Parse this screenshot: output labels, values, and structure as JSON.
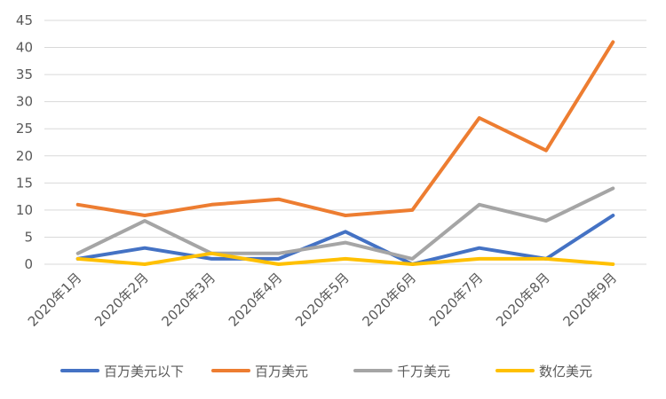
{
  "chart_data": {
    "type": "line",
    "title": "",
    "xlabel": "",
    "ylabel": "",
    "categories": [
      "2020年1月",
      "2020年2月",
      "2020年3月",
      "2020年4月",
      "2020年5月",
      "2020年6月",
      "2020年7月",
      "2020年8月",
      "2020年9月"
    ],
    "ylim": [
      0,
      45
    ],
    "yticks": [
      0,
      5,
      10,
      15,
      20,
      25,
      30,
      35,
      40,
      45
    ],
    "grid": true,
    "legend_position": "bottom",
    "series": [
      {
        "name": "百万美元以下",
        "color": "#4472c4",
        "values": [
          1,
          3,
          1,
          1,
          6,
          0,
          3,
          1,
          9
        ]
      },
      {
        "name": "百万美元",
        "color": "#ed7d31",
        "values": [
          11,
          9,
          11,
          12,
          9,
          10,
          27,
          21,
          41
        ]
      },
      {
        "name": "千万美元",
        "color": "#a5a5a5",
        "values": [
          2,
          8,
          2,
          2,
          4,
          1,
          11,
          8,
          14
        ]
      },
      {
        "name": "数亿美元",
        "color": "#ffc000",
        "values": [
          1,
          0,
          2,
          0,
          1,
          0,
          1,
          1,
          0
        ]
      }
    ]
  }
}
